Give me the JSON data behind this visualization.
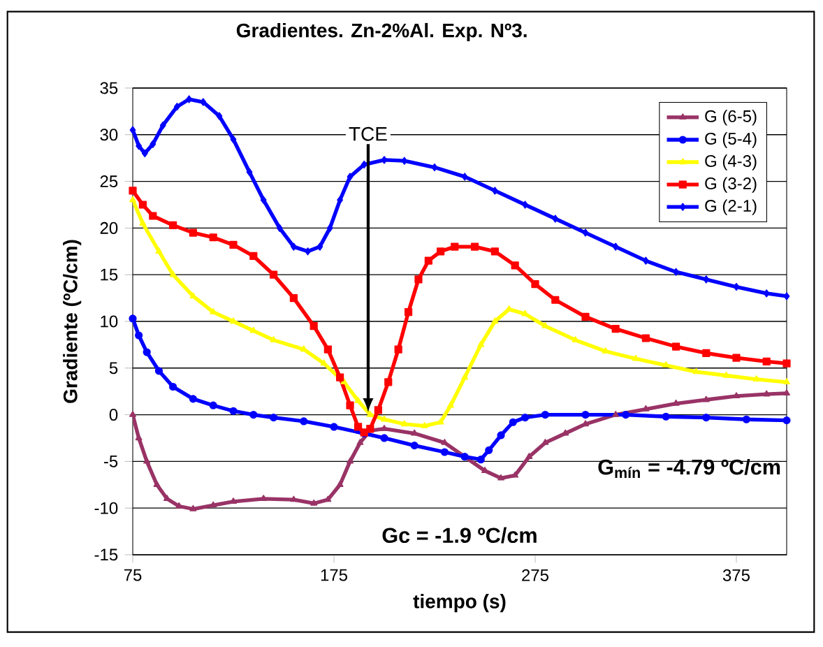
{
  "chart_data": {
    "type": "line",
    "title": "Gradientes. Zn-2%Al. Exp. Nº3.",
    "xlabel": "tiempo (s)",
    "ylabel": "Gradiente (ºC/cm)",
    "xlim": [
      75,
      400
    ],
    "xticks": [
      75,
      175,
      275,
      375
    ],
    "ylim": [
      -15,
      35
    ],
    "yticks": [
      -15,
      -10,
      -5,
      0,
      5,
      10,
      15,
      20,
      25,
      30,
      35
    ],
    "grid": "y",
    "legend": "top right",
    "annotations": [
      "TCE",
      "G$_{mín}$ = -4.79 ºC/cm",
      "Gc = -1.9 ºC/cm"
    ],
    "series": [
      {
        "name": "G (6-5)",
        "color": "#993366",
        "marker": "triangle",
        "x": [
          75,
          78,
          82,
          87,
          92,
          98,
          105,
          115,
          125,
          140,
          155,
          165,
          172,
          178,
          183,
          188,
          193,
          200,
          215,
          230,
          240,
          250,
          258,
          265,
          272,
          280,
          290,
          300,
          315,
          330,
          345,
          360,
          375,
          390,
          400
        ],
        "values": [
          0,
          -2.5,
          -5,
          -7.5,
          -9,
          -9.8,
          -10.1,
          -9.7,
          -9.3,
          -9,
          -9.1,
          -9.5,
          -9.1,
          -7.5,
          -5,
          -3,
          -1.7,
          -1.5,
          -2,
          -3,
          -4.5,
          -6,
          -6.8,
          -6.5,
          -4.5,
          -3,
          -2,
          -1,
          0,
          0.6,
          1.2,
          1.6,
          2,
          2.2,
          2.3
        ]
      },
      {
        "name": "G (5-4)",
        "color": "#0000ff",
        "marker": "circle",
        "x": [
          75,
          78,
          82,
          88,
          95,
          105,
          115,
          125,
          135,
          145,
          160,
          175,
          190,
          200,
          215,
          230,
          240,
          248,
          252,
          258,
          264,
          270,
          280,
          300,
          320,
          340,
          360,
          380,
          400
        ],
        "values": [
          10.3,
          8.5,
          6.7,
          4.7,
          3,
          1.7,
          1,
          0.4,
          0,
          -0.3,
          -0.7,
          -1.3,
          -2,
          -2.5,
          -3.3,
          -4,
          -4.5,
          -4.8,
          -3.8,
          -2.2,
          -0.8,
          -0.3,
          0,
          0,
          0,
          -0.2,
          -0.3,
          -0.5,
          -0.6
        ]
      },
      {
        "name": "G (4-3)",
        "color": "#ffff00",
        "marker": "triangle",
        "x": [
          75,
          80,
          88,
          95,
          105,
          115,
          125,
          135,
          145,
          160,
          170,
          180,
          187,
          193,
          200,
          210,
          220,
          228,
          233,
          240,
          248,
          255,
          262,
          270,
          280,
          295,
          310,
          325,
          340,
          355,
          370,
          385,
          400
        ],
        "values": [
          23,
          20.5,
          17.5,
          15,
          12.7,
          11,
          10,
          9,
          8,
          7,
          5.5,
          3.5,
          1.5,
          0,
          -0.5,
          -1,
          -1.2,
          -0.8,
          1,
          4,
          7.5,
          10,
          11.3,
          10.8,
          9.5,
          8,
          6.8,
          6,
          5.3,
          4.6,
          4.2,
          3.8,
          3.5
        ]
      },
      {
        "name": "G (3-2)",
        "color": "#ff0000",
        "marker": "square",
        "x": [
          75,
          80,
          85,
          95,
          105,
          115,
          125,
          135,
          145,
          155,
          165,
          172,
          178,
          183,
          187,
          190,
          193,
          197,
          202,
          207,
          212,
          217,
          222,
          228,
          235,
          245,
          255,
          265,
          275,
          285,
          300,
          315,
          330,
          345,
          360,
          375,
          390,
          400
        ],
        "values": [
          24,
          22.5,
          21.3,
          20.3,
          19.5,
          19,
          18.2,
          17,
          15,
          12.5,
          9.5,
          7,
          4,
          1,
          -1.3,
          -1.9,
          -1.5,
          0.5,
          3.5,
          7,
          11,
          14.5,
          16.5,
          17.5,
          18,
          18,
          17.5,
          16,
          14,
          12.3,
          10.5,
          9.2,
          8.2,
          7.3,
          6.6,
          6.1,
          5.7,
          5.5
        ]
      },
      {
        "name": "G (2-1)",
        "color": "#0000ff",
        "marker": "diamond",
        "x": [
          75,
          78,
          81,
          85,
          90,
          97,
          103,
          110,
          118,
          125,
          133,
          140,
          148,
          155,
          162,
          168,
          173,
          178,
          183,
          190,
          200,
          210,
          225,
          240,
          255,
          270,
          285,
          300,
          315,
          330,
          345,
          360,
          375,
          390,
          400
        ],
        "values": [
          30.5,
          28.8,
          28,
          29,
          31,
          33,
          33.8,
          33.5,
          32,
          29.5,
          26,
          23,
          20,
          18,
          17.5,
          18,
          20,
          23,
          25.5,
          26.8,
          27.3,
          27.2,
          26.5,
          25.5,
          24,
          22.5,
          21,
          19.5,
          18,
          16.5,
          15.3,
          14.5,
          13.7,
          13,
          12.7
        ]
      }
    ]
  }
}
